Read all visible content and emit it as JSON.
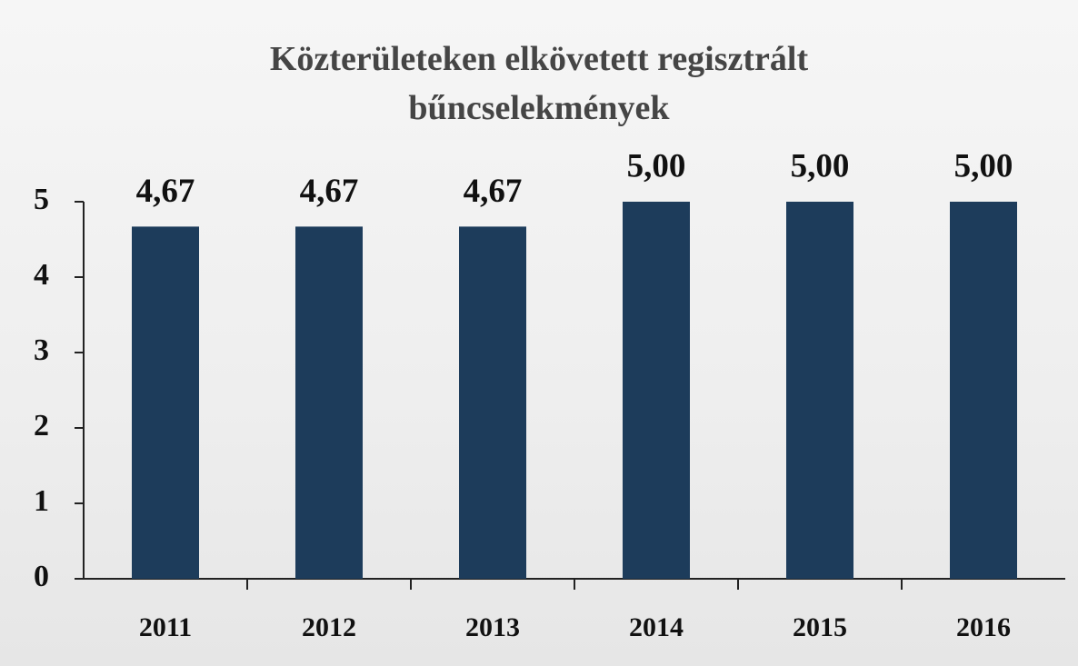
{
  "chart_data": {
    "type": "bar",
    "title": "Közterületeken elkövetett regisztrált bűncselekmények",
    "categories": [
      "2011",
      "2012",
      "2013",
      "2014",
      "2015",
      "2016"
    ],
    "values": [
      4.67,
      4.67,
      4.67,
      5,
      5,
      5
    ],
    "value_labels": [
      "4,67",
      "4,67",
      "4,67",
      "5,00",
      "5,00",
      "5,00"
    ],
    "color": "#1d3c5b",
    "ylim": [
      0,
      5
    ],
    "yticks": [
      0,
      1,
      2,
      3,
      4,
      5
    ],
    "grid": false
  }
}
